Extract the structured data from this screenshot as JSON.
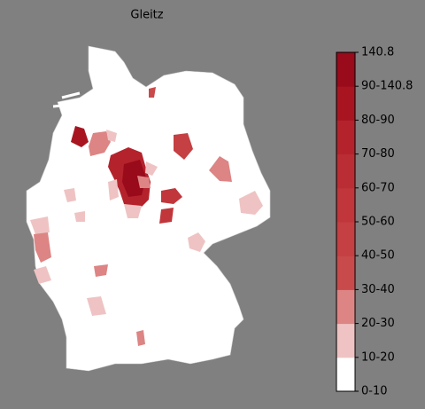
{
  "title": "Gleitz",
  "legend": {
    "labels": [
      "0-10",
      "10-20",
      "20-30",
      "30-40",
      "40-50",
      "50-60",
      "60-70",
      "70-80",
      "80-90",
      "90-140.8",
      "140.8"
    ],
    "colors": [
      "#ffffff",
      "#efc3c3",
      "#dd8484",
      "#c84a4b",
      "#c44043",
      "#c0363b",
      "#bb2d34",
      "#b4232c",
      "#a81521",
      "#990a1b"
    ]
  }
}
